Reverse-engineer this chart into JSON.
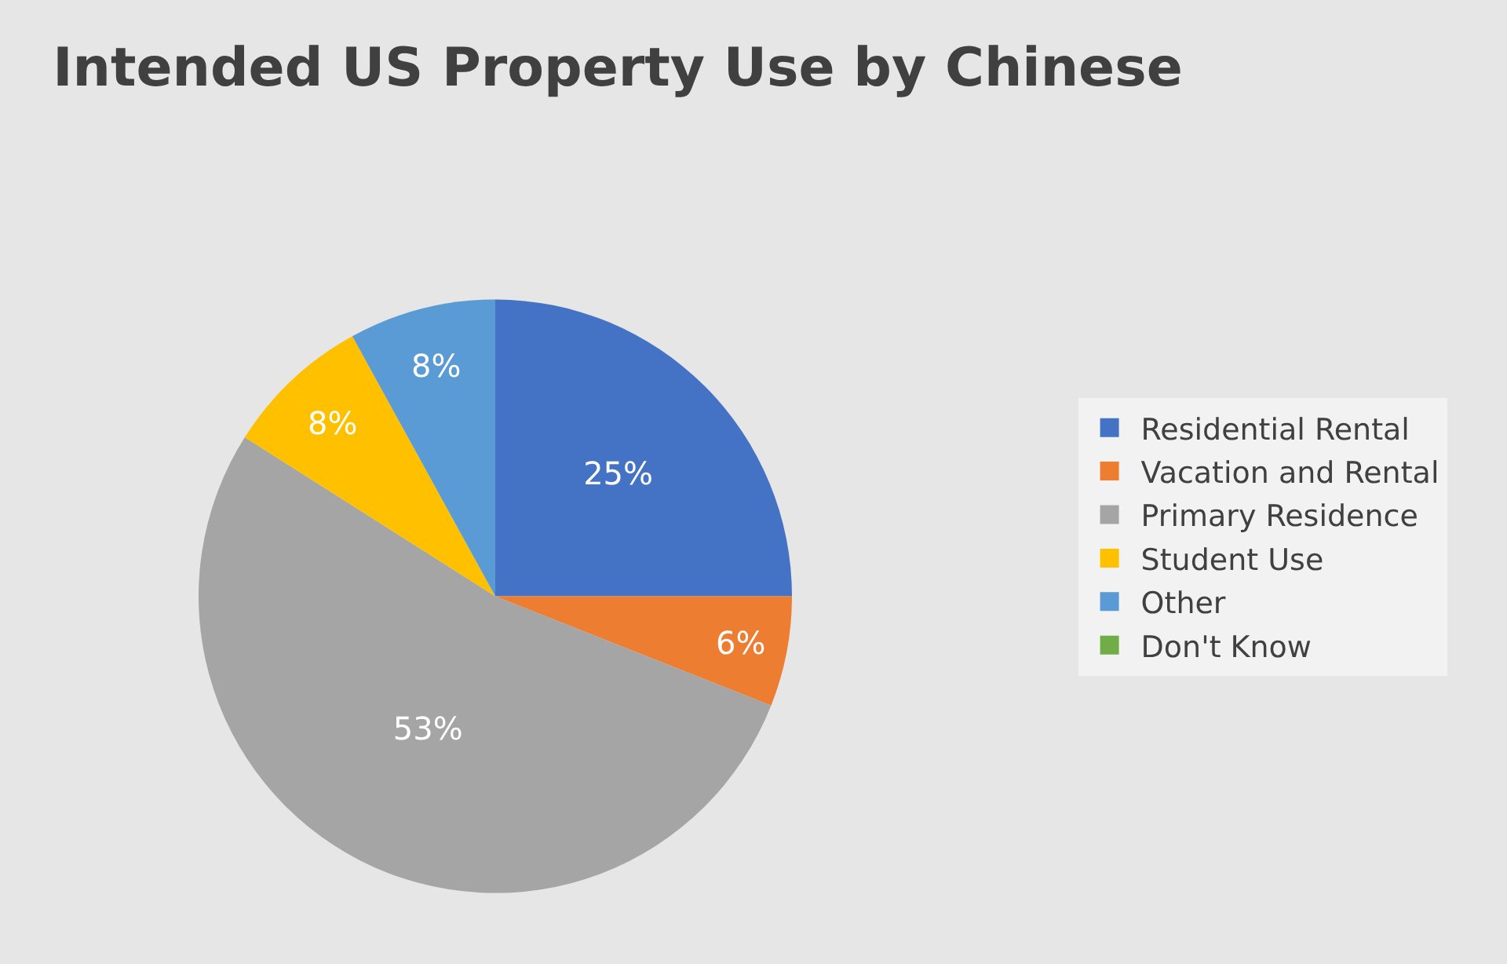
{
  "chart_data": {
    "type": "pie",
    "title": "Intended US Property Use by Chinese",
    "categories": [
      "Residential Rental",
      "Vacation and Rental",
      "Primary Residence",
      "Student Use",
      "Other",
      "Don't Know"
    ],
    "values": [
      25,
      6,
      53,
      8,
      8,
      0
    ],
    "colors": [
      "#4472c4",
      "#ed7d31",
      "#a5a5a5",
      "#ffc000",
      "#5b9bd5",
      "#70ad47"
    ],
    "value_labels": [
      "25%",
      "6%",
      "53%",
      "8%",
      "8%",
      null
    ],
    "legend": "right"
  }
}
